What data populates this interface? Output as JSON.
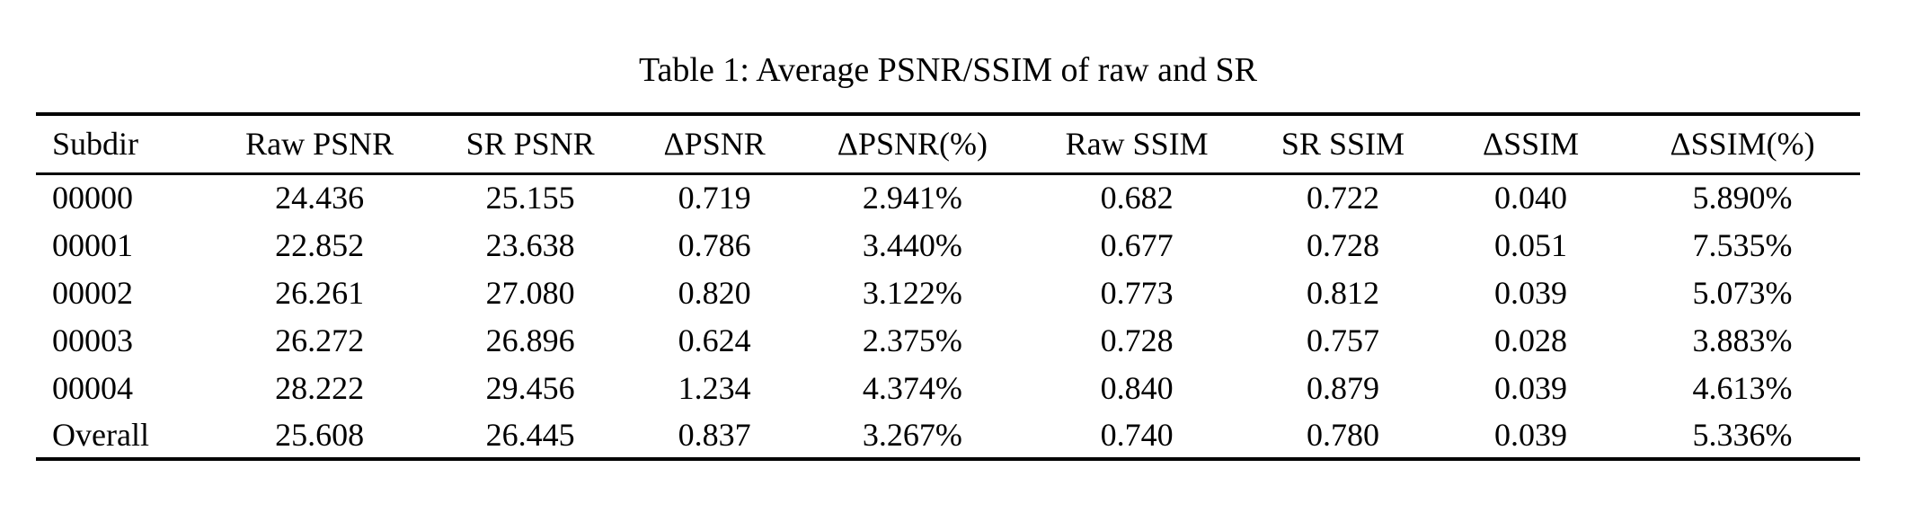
{
  "caption": "Table 1: Average PSNR/SSIM of raw and SR",
  "colors": {
    "text": "#000000",
    "background": "#ffffff",
    "rule": "#000000"
  },
  "table": {
    "columns": [
      "Subdir",
      "Raw PSNR",
      "SR PSNR",
      "ΔPSNR",
      "ΔPSNR(%)",
      "Raw SSIM",
      "SR SSIM",
      "ΔSSIM",
      "ΔSSIM(%)"
    ],
    "rows": [
      [
        "00000",
        "24.436",
        "25.155",
        "0.719",
        "2.941%",
        "0.682",
        "0.722",
        "0.040",
        "5.890%"
      ],
      [
        "00001",
        "22.852",
        "23.638",
        "0.786",
        "3.440%",
        "0.677",
        "0.728",
        "0.051",
        "7.535%"
      ],
      [
        "00002",
        "26.261",
        "27.080",
        "0.820",
        "3.122%",
        "0.773",
        "0.812",
        "0.039",
        "5.073%"
      ],
      [
        "00003",
        "26.272",
        "26.896",
        "0.624",
        "2.375%",
        "0.728",
        "0.757",
        "0.028",
        "3.883%"
      ],
      [
        "00004",
        "28.222",
        "29.456",
        "1.234",
        "4.374%",
        "0.840",
        "0.879",
        "0.039",
        "4.613%"
      ],
      [
        "Overall",
        "25.608",
        "26.445",
        "0.837",
        "3.267%",
        "0.740",
        "0.780",
        "0.039",
        "5.336%"
      ]
    ]
  }
}
